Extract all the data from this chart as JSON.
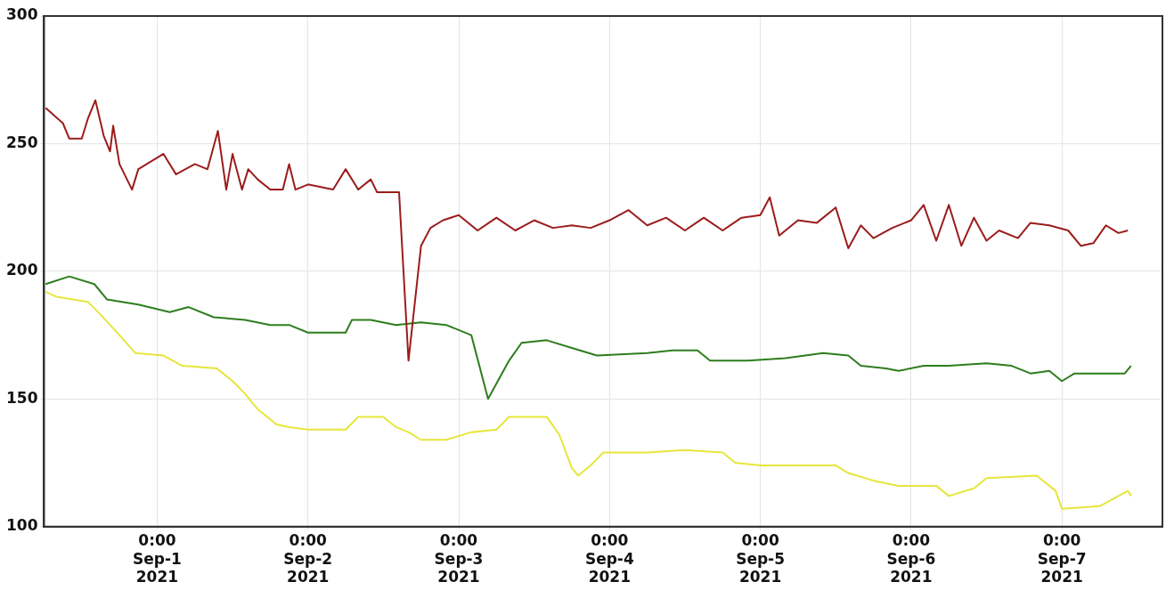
{
  "chart_data": {
    "type": "line",
    "marker": "none",
    "grid": true,
    "legend": false,
    "xlim": [
      "2021-08-31T06:00",
      "2021-09-07T16:00"
    ],
    "xticks": [
      {
        "value": "2021-09-01T00:00",
        "label": "0:00\nSep-1\n2021"
      },
      {
        "value": "2021-09-02T00:00",
        "label": "0:00\nSep-2\n2021"
      },
      {
        "value": "2021-09-03T00:00",
        "label": "0:00\nSep-3\n2021"
      },
      {
        "value": "2021-09-04T00:00",
        "label": "0:00\nSep-4\n2021"
      },
      {
        "value": "2021-09-05T00:00",
        "label": "0:00\nSep-5\n2021"
      },
      {
        "value": "2021-09-06T00:00",
        "label": "0:00\nSep-6\n2021"
      },
      {
        "value": "2021-09-07T00:00",
        "label": "0:00\nSep-7\n2021"
      }
    ],
    "ylim": [
      100,
      300
    ],
    "yticks": [
      100,
      150,
      200,
      250,
      300
    ],
    "series": [
      {
        "color": "#9b1c1c",
        "x": [
          "2021-08-31T06:15",
          "2021-08-31T09:00",
          "2021-08-31T10:00",
          "2021-08-31T12:00",
          "2021-08-31T13:00",
          "2021-08-31T14:10",
          "2021-08-31T15:30",
          "2021-08-31T16:30",
          "2021-08-31T17:00",
          "2021-08-31T18:00",
          "2021-08-31T20:00",
          "2021-08-31T21:00",
          "2021-09-01T01:00",
          "2021-09-01T03:00",
          "2021-09-01T06:00",
          "2021-09-01T08:00",
          "2021-09-01T09:40",
          "2021-09-01T11:00",
          "2021-09-01T12:00",
          "2021-09-01T13:30",
          "2021-09-01T14:30",
          "2021-09-01T16:00",
          "2021-09-01T18:00",
          "2021-09-01T20:00",
          "2021-09-01T21:00",
          "2021-09-01T22:00",
          "2021-09-02T00:00",
          "2021-09-02T04:00",
          "2021-09-02T06:00",
          "2021-09-02T08:00",
          "2021-09-02T10:00",
          "2021-09-02T11:00",
          "2021-09-02T14:30",
          "2021-09-02T16:00",
          "2021-09-02T18:00",
          "2021-09-02T19:30",
          "2021-09-02T21:30",
          "2021-09-03T00:00",
          "2021-09-03T03:00",
          "2021-09-03T06:00",
          "2021-09-03T09:00",
          "2021-09-03T12:00",
          "2021-09-03T15:00",
          "2021-09-03T18:00",
          "2021-09-03T21:00",
          "2021-09-04T00:00",
          "2021-09-04T03:00",
          "2021-09-04T06:00",
          "2021-09-04T09:00",
          "2021-09-04T12:00",
          "2021-09-04T15:00",
          "2021-09-04T18:00",
          "2021-09-04T21:00",
          "2021-09-05T00:00",
          "2021-09-05T01:30",
          "2021-09-05T03:00",
          "2021-09-05T06:00",
          "2021-09-05T09:00",
          "2021-09-05T12:00",
          "2021-09-05T14:00",
          "2021-09-05T16:00",
          "2021-09-05T18:00",
          "2021-09-05T21:00",
          "2021-09-06T00:00",
          "2021-09-06T02:00",
          "2021-09-06T04:00",
          "2021-09-06T06:00",
          "2021-09-06T08:00",
          "2021-09-06T10:00",
          "2021-09-06T12:00",
          "2021-09-06T14:00",
          "2021-09-06T17:00",
          "2021-09-06T19:00",
          "2021-09-06T22:00",
          "2021-09-07T01:00",
          "2021-09-07T03:00",
          "2021-09-07T05:00",
          "2021-09-07T07:00",
          "2021-09-07T09:00",
          "2021-09-07T10:30"
        ],
        "values": [
          264,
          258,
          252,
          252,
          260,
          267,
          253,
          247,
          257,
          242,
          232,
          240,
          246,
          238,
          242,
          240,
          255,
          232,
          246,
          232,
          240,
          236,
          232,
          232,
          242,
          232,
          234,
          232,
          240,
          232,
          236,
          231,
          231,
          165,
          210,
          217,
          220,
          222,
          216,
          221,
          216,
          220,
          217,
          218,
          217,
          220,
          224,
          218,
          221,
          216,
          221,
          216,
          221,
          222,
          229,
          214,
          220,
          219,
          225,
          209,
          218,
          213,
          217,
          220,
          226,
          212,
          226,
          210,
          221,
          212,
          216,
          213,
          219,
          218,
          216,
          210,
          211,
          218,
          215,
          216
        ]
      },
      {
        "color": "#2e7d1e",
        "x": [
          "2021-08-31T06:15",
          "2021-08-31T10:00",
          "2021-08-31T14:00",
          "2021-08-31T16:00",
          "2021-08-31T21:00",
          "2021-09-01T02:00",
          "2021-09-01T05:00",
          "2021-09-01T09:00",
          "2021-09-01T14:00",
          "2021-09-01T18:00",
          "2021-09-01T21:00",
          "2021-09-02T00:00",
          "2021-09-02T06:00",
          "2021-09-02T07:00",
          "2021-09-02T10:00",
          "2021-09-02T14:00",
          "2021-09-02T18:00",
          "2021-09-02T22:00",
          "2021-09-03T02:00",
          "2021-09-03T04:40",
          "2021-09-03T08:00",
          "2021-09-03T10:00",
          "2021-09-03T14:00",
          "2021-09-03T18:00",
          "2021-09-03T22:00",
          "2021-09-04T06:00",
          "2021-09-04T10:00",
          "2021-09-04T14:00",
          "2021-09-04T16:00",
          "2021-09-04T22:00",
          "2021-09-05T04:00",
          "2021-09-05T10:00",
          "2021-09-05T14:00",
          "2021-09-05T16:00",
          "2021-09-05T20:00",
          "2021-09-05T22:00",
          "2021-09-06T02:00",
          "2021-09-06T06:00",
          "2021-09-06T12:00",
          "2021-09-06T16:00",
          "2021-09-06T19:00",
          "2021-09-06T22:00",
          "2021-09-07T00:00",
          "2021-09-07T02:00",
          "2021-09-07T10:00",
          "2021-09-07T11:00"
        ],
        "values": [
          195,
          198,
          195,
          189,
          187,
          184,
          186,
          182,
          181,
          179,
          179,
          176,
          176,
          181,
          181,
          179,
          180,
          179,
          175,
          150,
          165,
          172,
          173,
          170,
          167,
          168,
          169,
          169,
          165,
          165,
          166,
          168,
          167,
          163,
          162,
          161,
          163,
          163,
          164,
          163,
          160,
          161,
          157,
          160,
          160,
          163
        ]
      },
      {
        "color": "#e6e63c",
        "x": [
          "2021-08-31T06:15",
          "2021-08-31T08:00",
          "2021-08-31T13:00",
          "2021-08-31T15:00",
          "2021-08-31T18:00",
          "2021-08-31T20:30",
          "2021-09-01T01:00",
          "2021-09-01T04:00",
          "2021-09-01T09:30",
          "2021-09-01T12:00",
          "2021-09-01T14:00",
          "2021-09-01T16:00",
          "2021-09-01T19:00",
          "2021-09-01T21:00",
          "2021-09-02T00:00",
          "2021-09-02T06:00",
          "2021-09-02T08:00",
          "2021-09-02T12:00",
          "2021-09-02T14:00",
          "2021-09-02T16:00",
          "2021-09-02T18:00",
          "2021-09-02T22:00",
          "2021-09-03T02:00",
          "2021-09-03T06:00",
          "2021-09-03T08:00",
          "2021-09-03T14:00",
          "2021-09-03T16:00",
          "2021-09-03T18:00",
          "2021-09-03T19:00",
          "2021-09-03T21:00",
          "2021-09-03T23:00",
          "2021-09-04T06:00",
          "2021-09-04T12:00",
          "2021-09-04T18:00",
          "2021-09-04T20:00",
          "2021-09-05T00:00",
          "2021-09-05T12:00",
          "2021-09-05T14:00",
          "2021-09-05T18:00",
          "2021-09-05T22:00",
          "2021-09-06T04:00",
          "2021-09-06T06:00",
          "2021-09-06T10:00",
          "2021-09-06T12:00",
          "2021-09-06T20:00",
          "2021-09-06T23:00",
          "2021-09-07T00:00",
          "2021-09-07T06:00",
          "2021-09-07T09:00",
          "2021-09-07T10:30",
          "2021-09-07T11:00"
        ],
        "values": [
          192,
          190,
          188,
          183,
          175,
          168,
          167,
          163,
          162,
          157,
          152,
          146,
          140,
          139,
          138,
          138,
          143,
          143,
          139,
          137,
          134,
          134,
          137,
          138,
          143,
          143,
          136,
          123,
          120,
          124,
          129,
          129,
          130,
          129,
          125,
          124,
          124,
          121,
          118,
          116,
          116,
          112,
          115,
          119,
          120,
          114,
          107,
          108,
          112,
          114,
          112
        ]
      }
    ]
  }
}
